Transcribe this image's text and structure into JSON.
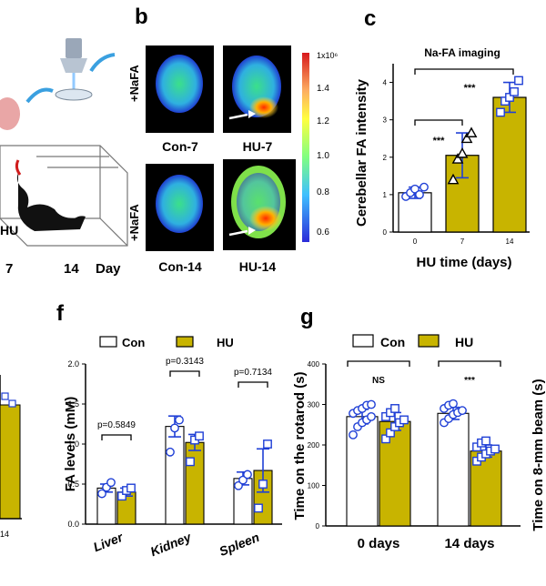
{
  "panels": {
    "b": "b",
    "c": "c",
    "f": "f",
    "g": "g"
  },
  "partial_left": {
    "a_timeline_ticks": [
      "7",
      "14",
      "Day"
    ],
    "a_cage_label": "HU",
    "e_xtick": "14"
  },
  "imaging": {
    "side_labels": [
      "+NaFA",
      "+NaFA"
    ],
    "image_labels": [
      "Con-7",
      "HU-7",
      "Con-14",
      "HU-14"
    ],
    "colorbar_ticks": [
      "1x10⁶",
      "1.4",
      "1.2",
      "1.0",
      "0.8",
      "0.6"
    ],
    "colorbar_colors": [
      "#d7191c",
      "#fdae61",
      "#ffff40",
      "#80ff80",
      "#40c0ff",
      "#2b2bd9"
    ]
  },
  "right_edge_label": "Time on 8-mm beam (s)",
  "colors": {
    "con": "#ffffff",
    "hu": "#c8b400",
    "error": "#1f3fd6"
  },
  "chart_data": [
    {
      "id": "c",
      "type": "bar",
      "title": "Na-FA imaging",
      "xlabel": "HU time (days)",
      "ylabel": "Cerebellar FA intensity",
      "categories": [
        "0",
        "7",
        "14"
      ],
      "values": [
        1.05,
        2.05,
        3.6
      ],
      "errors": [
        0.15,
        0.6,
        0.4
      ],
      "points": [
        [
          0.95,
          1.05,
          1.15,
          1.0,
          1.2
        ],
        [
          1.4,
          1.95,
          2.1,
          2.5,
          2.65
        ],
        [
          3.2,
          3.5,
          3.6,
          3.75,
          4.05
        ]
      ],
      "ylim": [
        0,
        4.5
      ],
      "yticks": [
        "0",
        "1",
        "2",
        "3",
        "4",
        "5"
      ],
      "significance": [
        "***",
        "***"
      ],
      "grid": false
    },
    {
      "id": "f",
      "type": "bar",
      "ylabel": "FA levels (mM)",
      "categories": [
        "Liver",
        "Kidney",
        "Spleen"
      ],
      "series": [
        {
          "name": "Con",
          "values": [
            0.45,
            1.22,
            0.57
          ],
          "errors": [
            0.05,
            0.13,
            0.08
          ],
          "points": [
            [
              0.38,
              0.46,
              0.52
            ],
            [
              0.9,
              1.2,
              1.3
            ],
            [
              0.48,
              0.55,
              0.62
            ]
          ]
        },
        {
          "name": "HU",
          "values": [
            0.4,
            1.02,
            0.67
          ],
          "errors": [
            0.05,
            0.1,
            0.27
          ],
          "points": [
            [
              0.35,
              0.42,
              0.45
            ],
            [
              0.78,
              1.05,
              1.1
            ],
            [
              0.2,
              0.5,
              1.0
            ]
          ]
        }
      ],
      "ylim": [
        0,
        2.0
      ],
      "yticks": [
        "0.0",
        "0.5",
        "1.0",
        "1.5",
        "2.0"
      ],
      "annotations": [
        "p=0.5849",
        "p=0.3143",
        "p=0.7134"
      ],
      "legend": "top-left",
      "grid": false
    },
    {
      "id": "g",
      "type": "bar",
      "ylabel": "Time on the rotarod (s)",
      "categories": [
        "0 days",
        "14 days"
      ],
      "series": [
        {
          "name": "Con",
          "values": [
            270,
            278
          ],
          "errors": [
            18,
            15
          ],
          "points": [
            [
              225,
              245,
              255,
              262,
              270,
              278,
              285,
              290,
              298,
              300
            ],
            [
              255,
              265,
              275,
              280,
              285,
              290,
              298,
              302
            ]
          ]
        },
        {
          "name": "HU",
          "values": [
            258,
            185
          ],
          "errors": [
            22,
            15
          ],
          "points": [
            [
              215,
              230,
              245,
              255,
              262,
              270,
              280,
              290
            ],
            [
              160,
              170,
              178,
              185,
              190,
              195,
              205,
              210
            ]
          ]
        }
      ],
      "ylim": [
        0,
        400
      ],
      "yticks": [
        "0",
        "100",
        "200",
        "300",
        "400"
      ],
      "significance": [
        "NS",
        "***"
      ],
      "legend": "top",
      "grid": false
    }
  ]
}
